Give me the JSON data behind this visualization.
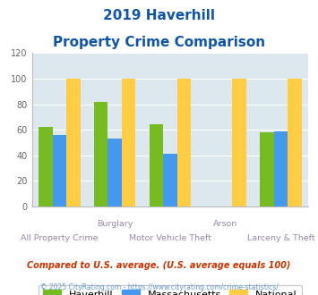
{
  "title_line1": "2019 Haverhill",
  "title_line2": "Property Crime Comparison",
  "cat_labels_top": [
    "",
    "Burglary",
    "",
    "Arson",
    ""
  ],
  "cat_labels_bot": [
    "All Property Crime",
    "",
    "Motor Vehicle Theft",
    "",
    "Larceny & Theft"
  ],
  "haverhill": [
    62,
    82,
    64,
    0,
    58
  ],
  "massachusetts": [
    56,
    53,
    41,
    0,
    59
  ],
  "national": [
    100,
    100,
    100,
    100,
    100
  ],
  "haverhill_color": "#77bb22",
  "massachusetts_color": "#4499ee",
  "national_color": "#ffcc44",
  "ylim": [
    0,
    120
  ],
  "yticks": [
    0,
    20,
    40,
    60,
    80,
    100,
    120
  ],
  "bar_width": 0.25,
  "legend_labels": [
    "Haverhill",
    "Massachusetts",
    "National"
  ],
  "footnote1": "Compared to U.S. average. (U.S. average equals 100)",
  "footnote2": "© 2025 CityRating.com - https://www.cityrating.com/crime-statistics/",
  "title_color": "#1155aa",
  "xlabel_color": "#9988aa",
  "footnote1_color": "#cc3300",
  "footnote2_color": "#6699cc",
  "plot_bg_color": "#dde8ee"
}
